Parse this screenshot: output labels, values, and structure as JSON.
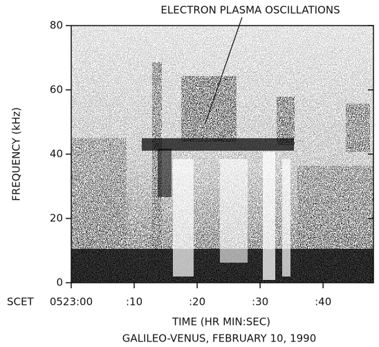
{
  "chart_data": {
    "type": "spectrogram",
    "annotation": "ELECTRON PLASMA OSCILLATIONS",
    "ylabel": "FREQUENCY (kHz)",
    "xlabel": "TIME (HR MIN:SEC)",
    "caption": "GALILEO-VENUS, FEBRUARY 10, 1990",
    "x_axis_prefix": "SCET",
    "xlim": [
      0,
      48
    ],
    "xticks": [
      {
        "value": 0,
        "label": "0523:00"
      },
      {
        "value": 10,
        "label": ":10"
      },
      {
        "value": 20,
        "label": ":20"
      },
      {
        "value": 30,
        "label": ":30"
      },
      {
        "value": 40,
        "label": ":40"
      }
    ],
    "ylim": [
      0,
      80
    ],
    "yticks": [
      0,
      20,
      40,
      60,
      80
    ]
  }
}
